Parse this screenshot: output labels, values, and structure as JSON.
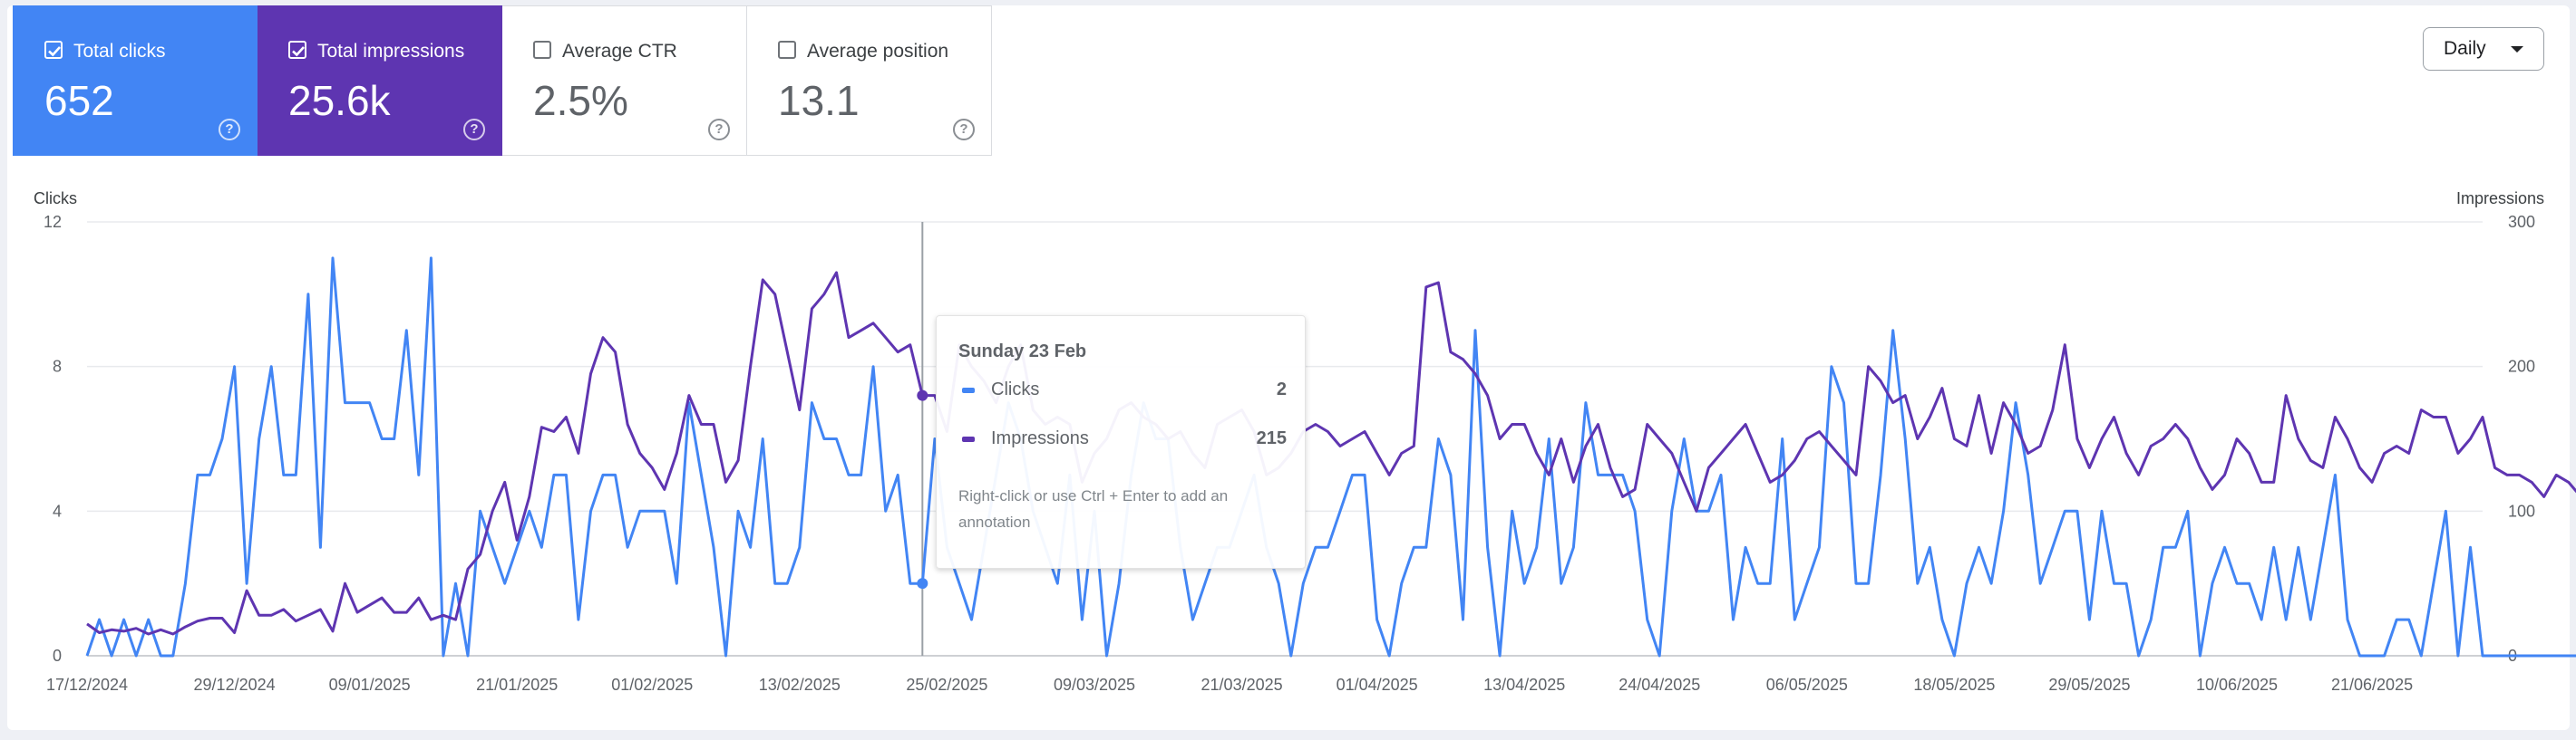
{
  "metrics": [
    {
      "label": "Total clicks",
      "value": "652",
      "checked": true,
      "color": "#4285f4"
    },
    {
      "label": "Total impressions",
      "value": "25.6k",
      "checked": true,
      "color": "#5e35b1"
    },
    {
      "label": "Average CTR",
      "value": "2.5%",
      "checked": false,
      "color": "#ffffff"
    },
    {
      "label": "Average position",
      "value": "13.1",
      "checked": false,
      "color": "#ffffff"
    }
  ],
  "period_select": {
    "value": "Daily"
  },
  "tooltip": {
    "date": "Sunday 23 Feb",
    "rows": [
      {
        "name": "Clicks",
        "value": "2",
        "color": "#4285f4"
      },
      {
        "name": "Impressions",
        "value": "215",
        "color": "#5e35b1"
      }
    ],
    "hint": "Right-click or use Ctrl + Enter to add an annotation"
  },
  "chart_data": {
    "type": "line",
    "y_left_label": "Clicks",
    "y_right_label": "Impressions",
    "y_left_ticks": [
      "0",
      "4",
      "8",
      "12"
    ],
    "y_right_ticks": [
      "0",
      "100",
      "200",
      "300"
    ],
    "ylim_left": [
      0,
      12
    ],
    "ylim_right": [
      0,
      300
    ],
    "x_tick_labels": [
      "17/12/2024",
      "29/12/2024",
      "09/01/2025",
      "21/01/2025",
      "01/02/2025",
      "13/02/2025",
      "25/02/2025",
      "09/03/2025",
      "21/03/2025",
      "01/04/2025",
      "13/04/2025",
      "24/04/2025",
      "06/05/2025",
      "18/05/2025",
      "29/05/2025",
      "10/06/2025",
      "21/06/2025"
    ],
    "x_start": "17/12/2024",
    "x_end": "30/06/2025",
    "highlight_date": "23/02/2025",
    "grid": true,
    "series": [
      {
        "name": "Clicks",
        "axis": "left",
        "color": "#4285f4",
        "values": [
          0,
          1,
          0,
          1,
          0,
          1,
          0,
          0,
          2,
          5,
          5,
          6,
          8,
          2,
          6,
          8,
          5,
          5,
          10,
          3,
          11,
          7,
          7,
          7,
          6,
          6,
          9,
          5,
          11,
          0,
          2,
          0,
          4,
          3,
          2,
          3,
          4,
          3,
          5,
          5,
          1,
          4,
          5,
          5,
          3,
          4,
          4,
          4,
          2,
          7,
          5,
          3,
          0,
          4,
          3,
          6,
          2,
          2,
          3,
          7,
          6,
          6,
          5,
          5,
          8,
          4,
          5,
          2,
          2,
          6,
          3,
          2,
          1,
          3,
          5,
          7,
          6,
          4,
          3,
          2,
          5,
          1,
          4,
          0,
          2,
          5,
          7,
          6,
          6,
          3,
          1,
          2,
          3,
          3,
          4,
          5,
          3,
          2,
          0,
          2,
          3,
          3,
          4,
          5,
          5,
          1,
          0,
          2,
          3,
          3,
          6,
          5,
          1,
          9,
          3,
          0,
          4,
          2,
          3,
          6,
          2,
          3,
          7,
          5,
          5,
          5,
          4,
          1,
          0,
          4,
          6,
          4,
          4,
          5,
          1,
          3,
          2,
          2,
          6,
          1,
          2,
          3,
          8,
          7,
          2,
          2,
          5,
          9,
          6,
          2,
          3,
          1,
          0,
          2,
          3,
          2,
          4,
          7,
          5,
          2,
          3,
          4,
          4,
          1,
          4,
          2,
          2,
          0,
          1,
          3,
          3,
          4,
          0,
          2,
          3,
          2,
          2,
          1,
          3,
          1,
          3,
          1,
          3,
          5,
          1,
          0,
          0,
          0,
          1,
          1,
          0,
          2,
          4,
          0,
          3,
          0,
          0,
          0,
          0,
          0,
          0,
          0,
          0,
          0,
          0
        ]
      },
      {
        "name": "Impressions",
        "axis": "right",
        "color": "#5e35b1",
        "values": [
          22,
          16,
          18,
          17,
          19,
          15,
          18,
          15,
          20,
          24,
          26,
          26,
          16,
          45,
          28,
          28,
          32,
          24,
          28,
          32,
          17,
          50,
          30,
          35,
          40,
          30,
          30,
          40,
          25,
          28,
          25,
          60,
          70,
          100,
          120,
          80,
          110,
          158,
          155,
          165,
          140,
          195,
          220,
          210,
          160,
          140,
          130,
          115,
          140,
          180,
          160,
          160,
          120,
          135,
          200,
          260,
          250,
          210,
          170,
          240,
          250,
          265,
          220,
          225,
          230,
          220,
          210,
          215,
          180,
          180,
          155,
          215,
          200,
          190,
          175,
          200,
          215,
          170,
          160,
          165,
          160,
          120,
          140,
          150,
          170,
          175,
          165,
          160,
          150,
          155,
          140,
          130,
          160,
          165,
          170,
          155,
          125,
          130,
          140,
          155,
          160,
          155,
          145,
          150,
          155,
          140,
          125,
          140,
          145,
          255,
          258,
          210,
          205,
          195,
          180,
          150,
          160,
          160,
          140,
          125,
          150,
          120,
          145,
          160,
          130,
          110,
          115,
          160,
          150,
          140,
          120,
          100,
          130,
          140,
          150,
          160,
          140,
          120,
          125,
          135,
          150,
          155,
          145,
          135,
          125,
          200,
          190,
          175,
          180,
          150,
          165,
          185,
          150,
          145,
          180,
          140,
          175,
          160,
          140,
          145,
          170,
          215,
          150,
          130,
          150,
          165,
          140,
          125,
          145,
          150,
          160,
          150,
          130,
          115,
          125,
          150,
          140,
          120,
          120,
          180,
          150,
          135,
          130,
          165,
          150,
          130,
          120,
          140,
          145,
          140,
          170,
          165,
          165,
          140,
          150,
          165,
          130,
          125,
          125,
          120,
          110,
          125,
          120,
          110,
          80,
          140,
          150,
          135,
          125,
          120,
          130,
          135,
          145,
          155,
          160,
          180,
          195,
          195,
          155,
          160,
          125,
          110,
          85,
          100,
          140,
          120,
          150,
          95,
          125,
          135,
          135,
          100,
          110,
          90,
          55,
          45,
          15,
          10
        ]
      }
    ]
  }
}
